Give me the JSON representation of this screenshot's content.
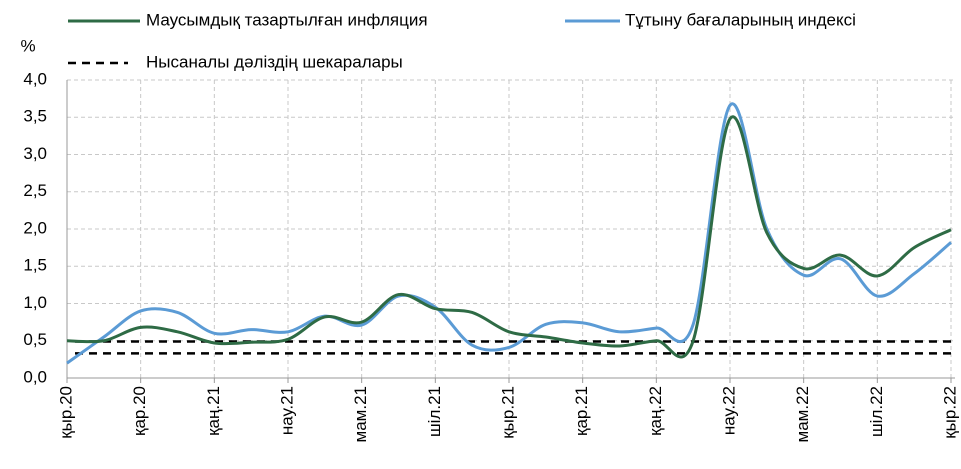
{
  "chart_data": {
    "type": "line",
    "y_label": "%",
    "categories": [
      "қыр.20",
      null,
      "қар.20",
      null,
      "қаң.21",
      null,
      "нау.21",
      null,
      "мам.21",
      null,
      "шіл.21",
      null,
      "қыр.21",
      null,
      "қар.21",
      null,
      "қаң.22",
      null,
      "нау.22",
      null,
      "мам.22",
      null,
      "шіл.22",
      null,
      "қыр.22"
    ],
    "series": [
      {
        "name": "Маусымдық тазартылған инфляция",
        "color": "#2e6b45",
        "values": [
          0.5,
          0.5,
          0.68,
          0.62,
          0.47,
          0.48,
          0.52,
          0.82,
          0.75,
          1.12,
          0.93,
          0.88,
          0.62,
          0.55,
          0.47,
          0.43,
          0.5,
          0.5,
          3.48,
          1.95,
          1.47,
          1.65,
          1.37,
          1.75,
          1.99
        ]
      },
      {
        "name": "Тұтыну бағаларының индексі",
        "color": "#5b9bd5",
        "values": [
          0.2,
          0.55,
          0.9,
          0.88,
          0.6,
          0.65,
          0.62,
          0.83,
          0.71,
          1.1,
          0.95,
          0.44,
          0.41,
          0.72,
          0.74,
          0.62,
          0.67,
          0.72,
          3.66,
          2.0,
          1.38,
          1.6,
          1.1,
          1.4,
          1.82
        ]
      }
    ],
    "reference_lines": {
      "name": "Нысаналы дәліздің шекаралары",
      "color": "#000000",
      "values": [
        0.49,
        0.33
      ]
    },
    "ylim": [
      0,
      4
    ],
    "yticks": [
      {
        "value": 0,
        "label": "0,0"
      },
      {
        "value": 0.5,
        "label": "0,5"
      },
      {
        "value": 1,
        "label": "1,0"
      },
      {
        "value": 1.5,
        "label": "1,5"
      },
      {
        "value": 2,
        "label": "2,0"
      },
      {
        "value": 2.5,
        "label": "2,5"
      },
      {
        "value": 3,
        "label": "3,0"
      },
      {
        "value": 3.5,
        "label": "3,5"
      },
      {
        "value": 4,
        "label": "4,0"
      }
    ],
    "grid": true
  }
}
